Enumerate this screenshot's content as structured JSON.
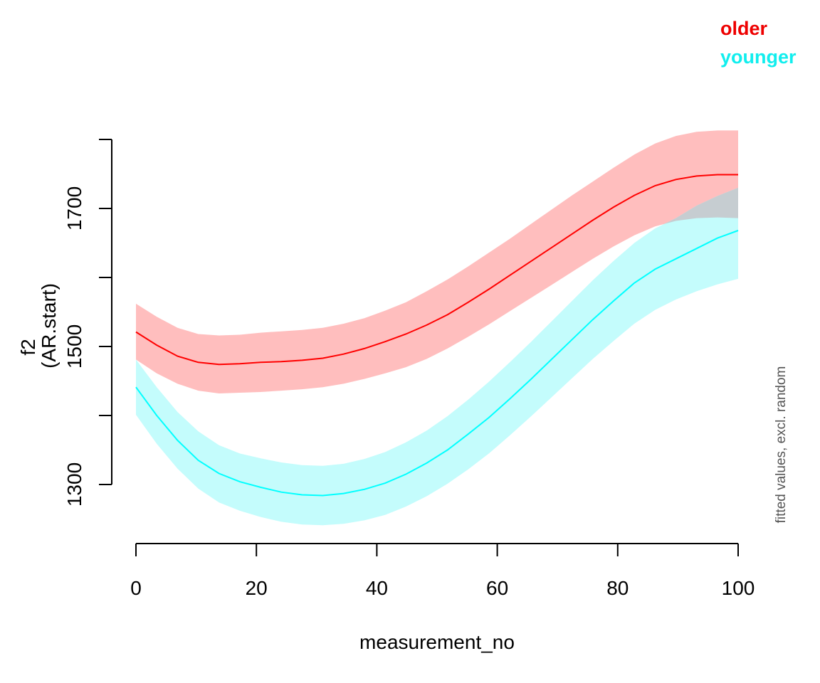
{
  "chart_data": {
    "type": "line",
    "title": "",
    "xlabel": "measurement_no",
    "ylabel_line1": "f2",
    "ylabel_line2": "(AR.start)",
    "side_note": "fitted values, excl. random",
    "xlim": [
      0,
      100
    ],
    "ylim": [
      1218,
      1800
    ],
    "x_ticks": [
      0,
      20,
      40,
      60,
      80,
      100
    ],
    "x_tick_labels": [
      "0",
      "20",
      "40",
      "60",
      "80",
      "100"
    ],
    "y_ticks": [
      1300,
      1400,
      1500,
      1600,
      1700,
      1800
    ],
    "y_tick_labels": [
      "1300",
      "",
      "1500",
      "",
      "1700",
      ""
    ],
    "x": [
      0,
      3.45,
      6.9,
      10.34,
      13.79,
      17.24,
      20.69,
      24.14,
      27.59,
      31.03,
      34.48,
      37.93,
      41.38,
      44.83,
      48.28,
      51.72,
      55.17,
      58.62,
      62.07,
      65.52,
      68.97,
      72.41,
      75.86,
      79.31,
      82.76,
      86.21,
      89.66,
      93.1,
      96.55,
      100
    ],
    "series": [
      {
        "name": "older",
        "color": "#ff0000",
        "band_color": "#ffbebe",
        "values": [
          1521,
          1502,
          1486,
          1477,
          1474,
          1475,
          1477,
          1478,
          1480,
          1483,
          1489,
          1497,
          1507,
          1518,
          1531,
          1546,
          1564,
          1583,
          1603,
          1623,
          1643,
          1663,
          1683,
          1702,
          1719,
          1733,
          1742,
          1747,
          1749,
          1749
        ],
        "lower": [
          1481,
          1461,
          1446,
          1436,
          1432,
          1433,
          1434,
          1436,
          1438,
          1441,
          1446,
          1453,
          1461,
          1470,
          1482,
          1497,
          1514,
          1532,
          1551,
          1570,
          1589,
          1608,
          1627,
          1645,
          1661,
          1674,
          1682,
          1686,
          1687,
          1686
        ],
        "upper": [
          1562,
          1543,
          1527,
          1518,
          1516,
          1517,
          1520,
          1522,
          1524,
          1527,
          1533,
          1541,
          1552,
          1564,
          1580,
          1597,
          1616,
          1636,
          1656,
          1677,
          1698,
          1719,
          1739,
          1759,
          1778,
          1794,
          1805,
          1811,
          1813,
          1813
        ]
      },
      {
        "name": "younger",
        "color": "#00ffff",
        "band_color": "#c4fcfc",
        "values": [
          1441,
          1400,
          1364,
          1335,
          1316,
          1304,
          1296,
          1289,
          1285,
          1284,
          1287,
          1293,
          1302,
          1315,
          1331,
          1350,
          1373,
          1397,
          1424,
          1452,
          1481,
          1510,
          1539,
          1566,
          1592,
          1612,
          1627,
          1642,
          1657,
          1668
        ],
        "lower": [
          1401,
          1359,
          1323,
          1294,
          1274,
          1262,
          1253,
          1246,
          1242,
          1241,
          1243,
          1248,
          1256,
          1268,
          1283,
          1301,
          1322,
          1345,
          1371,
          1398,
          1426,
          1454,
          1482,
          1508,
          1533,
          1553,
          1568,
          1580,
          1590,
          1598
        ],
        "upper": [
          1481,
          1441,
          1405,
          1377,
          1357,
          1345,
          1338,
          1332,
          1328,
          1327,
          1330,
          1337,
          1347,
          1361,
          1378,
          1399,
          1423,
          1449,
          1477,
          1506,
          1536,
          1566,
          1596,
          1624,
          1650,
          1671,
          1686,
          1704,
          1718,
          1730
        ]
      }
    ],
    "overlap_color": "#c6cdd1",
    "legend": {
      "position": "top-right",
      "items": [
        {
          "label": "older",
          "color": "#ee0000"
        },
        {
          "label": "younger",
          "color": "#11eeee"
        }
      ]
    },
    "grid": false
  }
}
